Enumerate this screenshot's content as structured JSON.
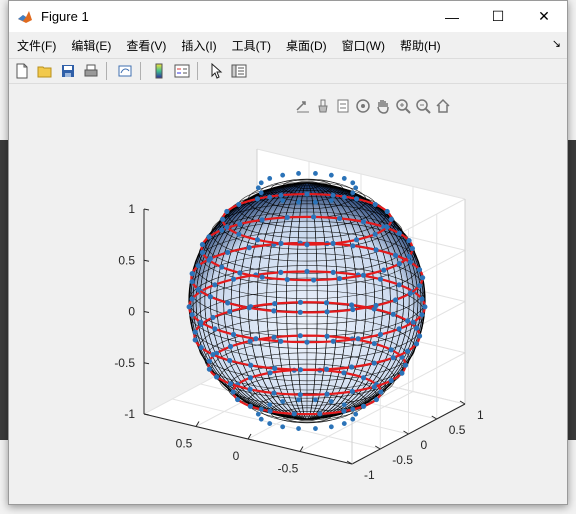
{
  "window": {
    "title": "Figure 1",
    "controls": {
      "minimize": "—",
      "maximize": "☐",
      "close": "✕"
    }
  },
  "menu": {
    "items": [
      "文件(F)",
      "编辑(E)",
      "查看(V)",
      "插入(I)",
      "工具(T)",
      "桌面(D)",
      "窗口(W)",
      "帮助(H)"
    ],
    "dock_glyph": "↘"
  },
  "toolbar": {
    "buttons": [
      "new-figure-icon",
      "open-file-icon",
      "save-icon",
      "print-icon",
      "link-plot-icon",
      "colorbar-icon",
      "legend-icon",
      "pointer-icon",
      "property-inspector-icon"
    ]
  },
  "axes_toolbar": {
    "buttons": [
      "export-icon",
      "brush-icon",
      "data-tips-icon",
      "rotate-3d-icon",
      "pan-icon",
      "zoom-in-icon",
      "zoom-out-icon",
      "home-icon"
    ]
  },
  "colors": {
    "mesh": "#000000",
    "markers": "#2b73b8",
    "lines": "#e41a1c",
    "face_light": "#eef3fb",
    "face_dark": "#1f3d70"
  },
  "chart_data": {
    "type": "surface",
    "description_type": "3d-mesh-sphere-with-scatter",
    "z_ticks": [
      "1",
      "0.5",
      "0",
      "-0.5",
      "-1"
    ],
    "x_ticks": [
      "0.5",
      "0",
      "-0.5"
    ],
    "y_ticks": [
      "1",
      "0.5",
      "0",
      "-0.5",
      "-1"
    ],
    "xlim": [
      -1,
      1
    ],
    "ylim": [
      -1,
      1
    ],
    "zlim": [
      -1,
      1
    ],
    "grid": true,
    "sphere_radius": 1
  }
}
